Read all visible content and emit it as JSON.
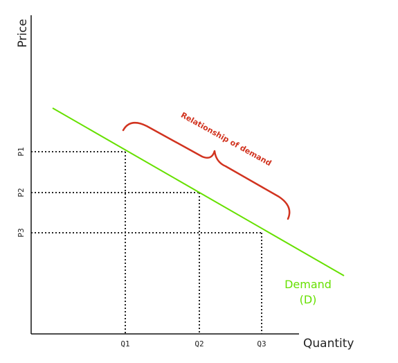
{
  "chart_data": {
    "type": "line",
    "xlabel": "Quantity",
    "ylabel": "Price",
    "x_ticks": [
      "Q1",
      "Q2",
      "Q3"
    ],
    "y_ticks": [
      "P1",
      "P2",
      "P3"
    ],
    "series": [
      {
        "name": "Demand (D)",
        "label_lines": [
          "Demand",
          "(D)"
        ],
        "color": "#66e000",
        "points": []
      }
    ],
    "points": [
      {
        "x": "Q1",
        "y": "P1"
      },
      {
        "x": "Q2",
        "y": "P2"
      },
      {
        "x": "Q3",
        "y": "P3"
      }
    ],
    "annotation": {
      "text": "Relationship of demand",
      "color": "#d1331f"
    },
    "guide_style": "dotted"
  }
}
